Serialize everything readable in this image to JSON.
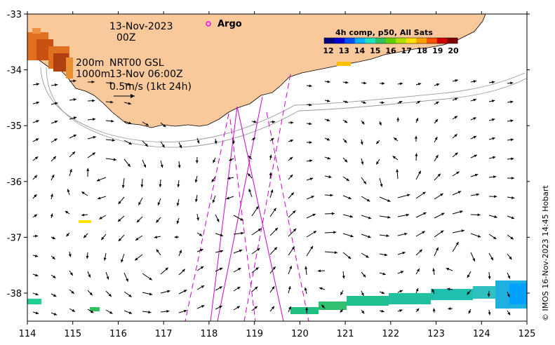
{
  "map": {
    "x_ticks": [
      "114",
      "115",
      "116",
      "117",
      "118",
      "119",
      "120",
      "121",
      "122",
      "123",
      "124",
      "125"
    ],
    "y_ticks": [
      "-33",
      "-34",
      "-35",
      "-36",
      "-37",
      "-38"
    ],
    "date_label": "13-Nov-2023",
    "time_label": "00Z",
    "contour_label_200": "200m",
    "contour_label_1000": "1000m",
    "product_label": "NRT00 GSL",
    "product_time": "13-Nov 06:00Z",
    "scale_label": "0.5m/s (1kt 24h)",
    "argo_label": "Argo",
    "colorbar_title": "4h comp, p50, All Sats",
    "colorbar_ticks": [
      "12",
      "13",
      "14",
      "15",
      "16",
      "17",
      "18",
      "19",
      "20"
    ],
    "credit": "© IMOS 16-Nov-2023 14:45 Hobart"
  },
  "colors": {
    "land": "#f9c89b",
    "track": "#cc00cc",
    "argo": "#ff00ff",
    "colormap": [
      "#000080",
      "#0000d0",
      "#0050ff",
      "#00b0ff",
      "#20e0c0",
      "#30c060",
      "#60d000",
      "#b0e000",
      "#ffe000",
      "#ffa000",
      "#ff5000",
      "#d00000",
      "#800000"
    ]
  }
}
